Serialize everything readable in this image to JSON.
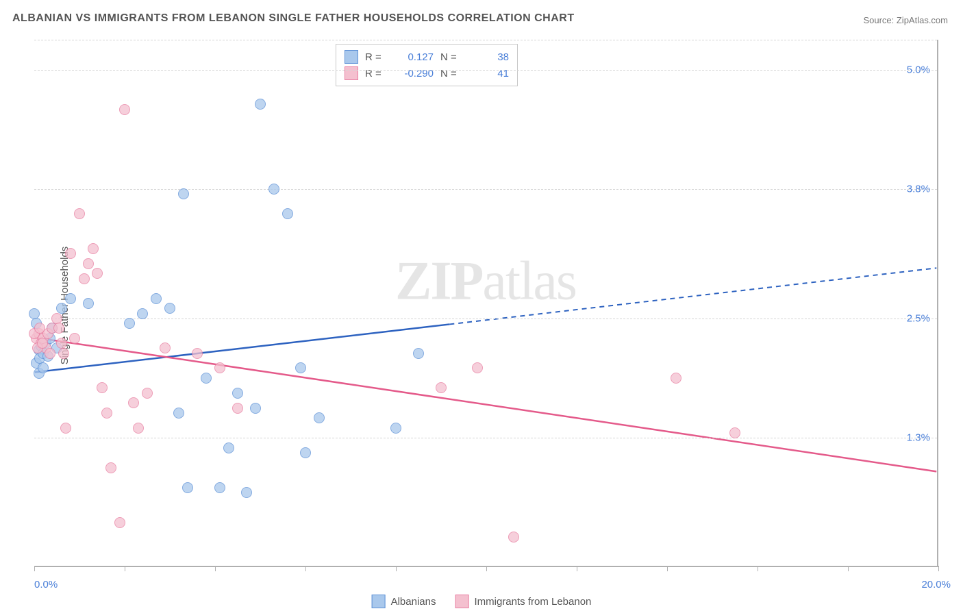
{
  "title": "ALBANIAN VS IMMIGRANTS FROM LEBANON SINGLE FATHER HOUSEHOLDS CORRELATION CHART",
  "source_prefix": "Source: ",
  "source_name": "ZipAtlas.com",
  "ylabel": "Single Father Households",
  "watermark_a": "ZIP",
  "watermark_b": "atlas",
  "chart": {
    "type": "scatter-correlation",
    "background_color": "#ffffff",
    "grid_color": "#d5d5d5",
    "axis_color": "#b0b0b0",
    "tick_label_color": "#4a7fd8",
    "xlim": [
      0,
      20
    ],
    "ylim": [
      0,
      5.3
    ],
    "x_min_label": "0.0%",
    "x_max_label": "20.0%",
    "y_gridlines": [
      1.3,
      2.5,
      3.8,
      5.0
    ],
    "y_grid_labels": [
      "1.3%",
      "2.5%",
      "3.8%",
      "5.0%"
    ],
    "x_ticks": [
      0,
      2,
      4,
      6,
      8,
      10,
      12,
      14,
      16,
      18,
      20
    ],
    "point_radius": 8,
    "series": [
      {
        "name": "Albanians",
        "fill": "#a9c8ec",
        "stroke": "#5b8fd6",
        "line_color": "#2d62c0",
        "R": "0.127",
        "N": "38",
        "trend": {
          "x1": 0,
          "y1": 1.95,
          "x2": 20,
          "y2": 3.0,
          "solid_until_x": 9.2
        },
        "points": [
          [
            0.05,
            2.05
          ],
          [
            0.1,
            2.18
          ],
          [
            0.12,
            2.1
          ],
          [
            0.15,
            2.22
          ],
          [
            0.2,
            2.15
          ],
          [
            0.25,
            2.25
          ],
          [
            0.3,
            2.12
          ],
          [
            0.35,
            2.3
          ],
          [
            0.4,
            2.4
          ],
          [
            0.5,
            2.2
          ],
          [
            0.6,
            2.6
          ],
          [
            0.8,
            2.7
          ],
          [
            1.2,
            2.65
          ],
          [
            2.1,
            2.45
          ],
          [
            2.4,
            2.55
          ],
          [
            2.7,
            2.7
          ],
          [
            3.3,
            3.75
          ],
          [
            3.0,
            2.6
          ],
          [
            3.2,
            1.55
          ],
          [
            3.4,
            0.8
          ],
          [
            3.8,
            1.9
          ],
          [
            4.1,
            0.8
          ],
          [
            4.3,
            1.2
          ],
          [
            4.5,
            1.75
          ],
          [
            5.0,
            4.65
          ],
          [
            5.3,
            3.8
          ],
          [
            5.6,
            3.55
          ],
          [
            5.9,
            2.0
          ],
          [
            6.0,
            1.15
          ],
          [
            6.3,
            1.5
          ],
          [
            4.7,
            0.75
          ],
          [
            4.9,
            1.6
          ],
          [
            8.0,
            1.4
          ],
          [
            8.5,
            2.15
          ],
          [
            0.0,
            2.55
          ],
          [
            0.05,
            2.45
          ],
          [
            0.1,
            1.95
          ],
          [
            0.2,
            2.0
          ]
        ]
      },
      {
        "name": "Immigrants from Lebanon",
        "fill": "#f4c0cf",
        "stroke": "#e87da0",
        "line_color": "#e45a8a",
        "R": "-0.290",
        "N": "41",
        "trend": {
          "x1": 0,
          "y1": 2.3,
          "x2": 20,
          "y2": 0.95,
          "solid_until_x": 20
        },
        "points": [
          [
            0.05,
            2.3
          ],
          [
            0.1,
            2.35
          ],
          [
            0.15,
            2.25
          ],
          [
            0.2,
            2.3
          ],
          [
            0.25,
            2.2
          ],
          [
            0.3,
            2.35
          ],
          [
            0.35,
            2.15
          ],
          [
            0.4,
            2.4
          ],
          [
            0.5,
            2.5
          ],
          [
            0.7,
            1.4
          ],
          [
            0.8,
            3.15
          ],
          [
            1.0,
            3.55
          ],
          [
            1.1,
            2.9
          ],
          [
            1.2,
            3.05
          ],
          [
            1.3,
            3.2
          ],
          [
            1.4,
            2.95
          ],
          [
            1.5,
            1.8
          ],
          [
            1.7,
            1.0
          ],
          [
            1.9,
            0.45
          ],
          [
            2.0,
            4.6
          ],
          [
            2.2,
            1.65
          ],
          [
            2.5,
            1.75
          ],
          [
            2.9,
            2.2
          ],
          [
            3.6,
            2.15
          ],
          [
            4.1,
            2.0
          ],
          [
            4.5,
            1.6
          ],
          [
            9.0,
            1.8
          ],
          [
            9.8,
            2.0
          ],
          [
            10.6,
            0.3
          ],
          [
            14.2,
            1.9
          ],
          [
            15.5,
            1.35
          ],
          [
            0.6,
            2.25
          ],
          [
            0.55,
            2.4
          ],
          [
            0.65,
            2.15
          ],
          [
            0.9,
            2.3
          ],
          [
            1.6,
            1.55
          ],
          [
            2.3,
            1.4
          ],
          [
            0.0,
            2.35
          ],
          [
            0.08,
            2.2
          ],
          [
            0.12,
            2.4
          ],
          [
            0.18,
            2.25
          ]
        ]
      }
    ]
  },
  "legend_bottom": {
    "items": [
      {
        "label": "Albanians",
        "fill": "#a9c8ec",
        "stroke": "#5b8fd6"
      },
      {
        "label": "Immigrants from Lebanon",
        "fill": "#f4c0cf",
        "stroke": "#e87da0"
      }
    ]
  },
  "legend_top_labels": {
    "R": "R =",
    "N": "N ="
  }
}
